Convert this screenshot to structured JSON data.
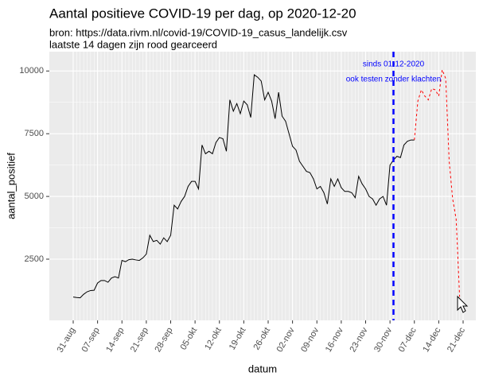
{
  "chart_data": {
    "type": "line",
    "title": "Aantal positieve COVID-19 per dag, op 2020-12-20",
    "subtitle": [
      "bron: https://data.rivm.nl/covid-19/COVID-19_casus_landelijk.csv",
      "laatste 14 dagen zijn rood gearceerd"
    ],
    "x_label": "datum",
    "y_label": "aantal_positief",
    "categories": [
      "31-aug",
      null,
      null,
      null,
      null,
      null,
      null,
      "07-sep",
      null,
      null,
      null,
      null,
      null,
      null,
      "14-sep",
      null,
      null,
      null,
      null,
      null,
      null,
      "21-sep",
      null,
      null,
      null,
      null,
      null,
      null,
      "28-sep",
      null,
      null,
      null,
      null,
      null,
      null,
      "05-okt",
      null,
      null,
      null,
      null,
      null,
      null,
      "12-okt",
      null,
      null,
      null,
      null,
      null,
      null,
      "19-okt",
      null,
      null,
      null,
      null,
      null,
      null,
      "26-okt",
      null,
      null,
      null,
      null,
      null,
      null,
      "02-nov",
      null,
      null,
      null,
      null,
      null,
      null,
      "09-nov",
      null,
      null,
      null,
      null,
      null,
      null,
      "16-nov",
      null,
      null,
      null,
      null,
      null,
      null,
      "23-nov",
      null,
      null,
      null,
      null,
      null,
      null,
      "30-nov",
      null,
      null,
      null,
      null,
      null,
      null,
      "07-dec",
      null,
      null,
      null,
      null,
      null,
      null,
      "14-dec",
      null,
      null,
      null,
      null,
      null,
      null,
      "21-dec"
    ],
    "series": [
      {
        "color": "#000000",
        "dashed": false,
        "values": [
          990,
          970,
          960,
          1100,
          1200,
          1250,
          1260,
          1550,
          1650,
          1650,
          1580,
          1750,
          1800,
          1750,
          2450,
          2400,
          2480,
          2500,
          2470,
          2450,
          2550,
          2700,
          3450,
          3200,
          3250,
          3100,
          3350,
          3200,
          3450,
          4650,
          4500,
          4800,
          5000,
          5400,
          5600,
          5600,
          5300,
          7050,
          6700,
          6800,
          6700,
          7150,
          7350,
          7300,
          6800,
          8850,
          8400,
          8700,
          8300,
          8800,
          8650,
          8150,
          9850,
          9750,
          9600,
          8850,
          9150,
          8800,
          8100,
          9150,
          8200,
          8000,
          7500,
          7000,
          6850,
          6400,
          6200,
          6000,
          5950,
          5700,
          5300,
          5400,
          5150,
          4700,
          5700,
          5400,
          5700,
          5350,
          5200,
          5200,
          5150,
          4950,
          5800,
          5500,
          5300,
          5000,
          4900,
          4650,
          4900,
          5000,
          4650,
          6250,
          6450,
          6600,
          6550,
          7050,
          7200,
          7250,
          7250,
          null,
          null,
          null,
          null,
          null,
          null,
          null,
          null,
          null,
          null,
          null,
          null,
          null,
          null
        ]
      },
      {
        "color": "#ff0000",
        "dashed": true,
        "values": [
          null,
          null,
          null,
          null,
          null,
          null,
          null,
          null,
          null,
          null,
          null,
          null,
          null,
          null,
          null,
          null,
          null,
          null,
          null,
          null,
          null,
          null,
          null,
          null,
          null,
          null,
          null,
          null,
          null,
          null,
          null,
          null,
          null,
          null,
          null,
          null,
          null,
          null,
          null,
          null,
          null,
          null,
          null,
          null,
          null,
          null,
          null,
          null,
          null,
          null,
          null,
          null,
          null,
          null,
          null,
          null,
          null,
          null,
          null,
          null,
          null,
          null,
          null,
          null,
          null,
          null,
          null,
          null,
          null,
          null,
          null,
          null,
          null,
          null,
          null,
          null,
          null,
          null,
          null,
          null,
          null,
          null,
          null,
          null,
          null,
          null,
          null,
          null,
          null,
          null,
          null,
          null,
          null,
          null,
          null,
          null,
          null,
          null,
          7250,
          8800,
          9250,
          9000,
          8850,
          9300,
          9250,
          9000,
          10050,
          9700,
          6400,
          4900,
          4100,
          1000,
          null
        ]
      }
    ],
    "ylim": [
      60,
      10770
    ],
    "yticks": [
      2500,
      5000,
      7500,
      10000
    ],
    "grid": true,
    "vline": {
      "x": 92,
      "color": "#0000ff",
      "label": [
        "sinds 01-12-2020",
        "ook testen zonder klachten"
      ]
    }
  }
}
